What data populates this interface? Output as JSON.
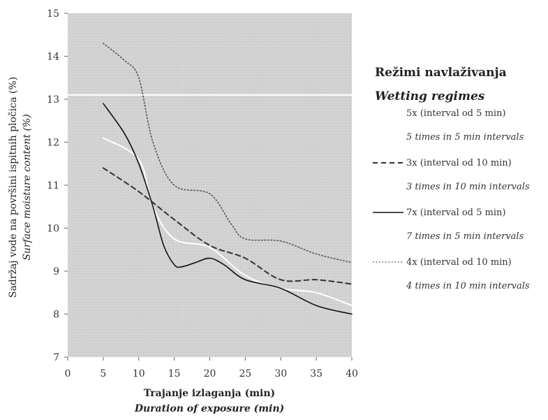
{
  "chart_data": {
    "type": "line",
    "title": "",
    "xlabel": "Trajanje izlaganja (min)",
    "xlabel_en": "Duration of exposure (min)",
    "ylabel": "Sadržaj vode na površini ispitnih pločica (%)",
    "ylabel_en": "Surface moisture content (%)",
    "xlim": [
      0,
      40
    ],
    "ylim": [
      7,
      15
    ],
    "xticks": [
      "0",
      "5",
      "10",
      "15",
      "20",
      "25",
      "30",
      "35",
      "40"
    ],
    "yticks": [
      "7",
      "8",
      "9",
      "10",
      "11",
      "12",
      "13",
      "14",
      "15"
    ],
    "grid": false,
    "legend_placement": "right",
    "legend_title": "Režimi navlaživanja",
    "legend_title_en": "Wetting regimes",
    "series": [
      {
        "name": "5x (interval od 5 min)",
        "name_en": "5 times in 5 min intervals",
        "style": "solid-white",
        "color": "#ffffff",
        "x": [
          5,
          10,
          12,
          15,
          20,
          25,
          30,
          35,
          40
        ],
        "y": [
          12.1,
          11.6,
          10.5,
          9.75,
          9.55,
          8.9,
          8.6,
          8.5,
          8.2
        ]
      },
      {
        "name": "3x (interval od 10 min)",
        "name_en": "3 times in 10 min intervals",
        "style": "dashed",
        "color": "#333333",
        "x": [
          5,
          10,
          15,
          20,
          25,
          30,
          35,
          40
        ],
        "y": [
          11.4,
          10.85,
          10.2,
          9.6,
          9.3,
          8.8,
          8.8,
          8.7
        ]
      },
      {
        "name": "7x (interval od 5 min)",
        "name_en": "7 times in 5 min intervals",
        "style": "solid",
        "color": "#111111",
        "x": [
          5,
          8,
          10,
          12,
          13.5,
          15,
          16,
          18,
          20,
          22,
          25,
          30,
          35,
          40
        ],
        "y": [
          12.9,
          12.2,
          11.5,
          10.5,
          9.6,
          9.15,
          9.1,
          9.2,
          9.3,
          9.15,
          8.8,
          8.6,
          8.2,
          8.0
        ]
      },
      {
        "name": "4x (interval od 10 min)",
        "name_en": "4 times in 10 min intervals",
        "style": "dotted",
        "color": "#555555",
        "x": [
          5,
          8,
          10,
          12,
          15,
          20,
          23,
          25,
          30,
          35,
          40
        ],
        "y": [
          14.3,
          13.9,
          13.5,
          12.0,
          11.0,
          10.8,
          10.1,
          9.75,
          9.7,
          9.4,
          9.2
        ]
      }
    ],
    "annotations": [
      {
        "type": "hline",
        "y": 13.1,
        "color": "#ffffff"
      }
    ]
  }
}
